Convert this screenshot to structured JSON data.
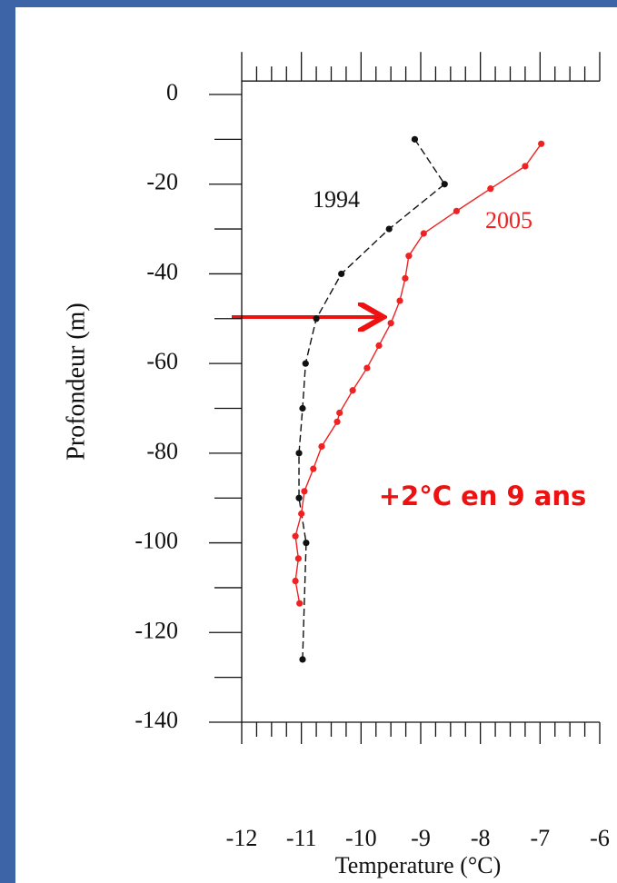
{
  "chart_data": {
    "type": "line",
    "xlabel": "Temperature (°C)",
    "ylabel": "Profondeur (m)",
    "xlim": [
      -12,
      -6
    ],
    "xticks": [
      -12,
      -11,
      -10,
      -9,
      -8,
      -7,
      -6
    ],
    "xminorticks": [
      -11.75,
      -11.5,
      -11.25,
      -10.75,
      -10.5,
      -10.25,
      -9.75,
      -9.5,
      -9.25,
      -8.75,
      -8.5,
      -8.25,
      -7.75,
      -7.5,
      -7.25,
      -6.75,
      -6.5,
      -6.25
    ],
    "ylim": [
      -140,
      3
    ],
    "yticks": [
      0,
      -20,
      -40,
      -60,
      -80,
      -100,
      -120,
      -140
    ],
    "yminorticks": [
      -10,
      -30,
      -50,
      -70,
      -90,
      -110,
      -130
    ],
    "series": [
      {
        "name": "1994",
        "color": "#111111",
        "dashed": true,
        "x": [
          -9.1,
          -8.6,
          -9.53,
          -10.33,
          -10.75,
          -10.93,
          -10.98,
          -11.04,
          -11.04,
          -10.92,
          -10.98
        ],
        "values": [
          -10,
          -20,
          -30,
          -40,
          -50,
          -60,
          -70,
          -80,
          -90,
          -100,
          -126
        ]
      },
      {
        "name": "2005",
        "color": "#ee2222",
        "dashed": false,
        "x": [
          -6.98,
          -7.25,
          -7.83,
          -8.4,
          -8.95,
          -9.2,
          -9.26,
          -9.35,
          -9.5,
          -9.7,
          -9.9,
          -10.14,
          -10.36,
          -10.4,
          -10.66,
          -10.8,
          -10.95,
          -11.0,
          -11.1,
          -11.05,
          -11.1,
          -11.03
        ],
        "values": [
          -11,
          -16,
          -21,
          -26,
          -31,
          -36,
          -41,
          -46,
          -51,
          -56,
          -61,
          -66,
          -71,
          -73,
          -78.5,
          -83.5,
          -88.5,
          -93.5,
          -98.5,
          -103.5,
          -108.5,
          -113.5
        ]
      }
    ],
    "annotations": [
      "+2°C en 9 ans"
    ]
  }
}
